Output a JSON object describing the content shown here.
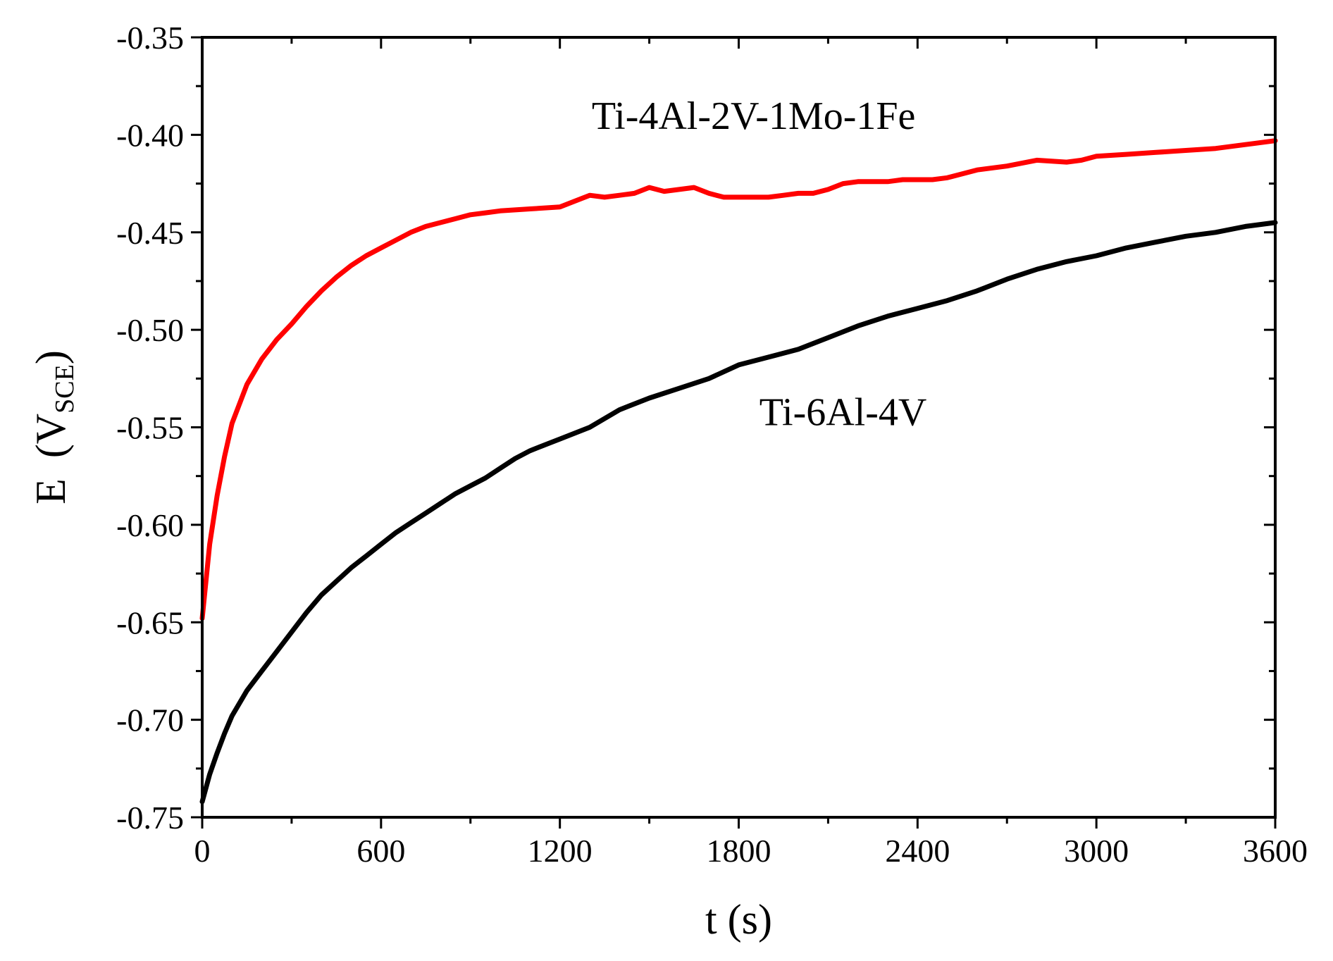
{
  "chart_data": {
    "type": "line",
    "title": "",
    "xlabel": "t (s)",
    "ylabel": {
      "main": "E",
      "unit_base": "V",
      "unit_subscript": "SCE"
    },
    "xlim": [
      0,
      3600
    ],
    "ylim": [
      -0.75,
      -0.35
    ],
    "x_ticks": [
      0,
      600,
      1200,
      1800,
      2400,
      3000,
      3600
    ],
    "x_tick_labels": [
      "0",
      "600",
      "1200",
      "1800",
      "2400",
      "3000",
      "3600"
    ],
    "y_ticks": [
      -0.75,
      -0.7,
      -0.65,
      -0.6,
      -0.55,
      -0.5,
      -0.45,
      -0.4,
      -0.35
    ],
    "y_tick_labels": [
      "-0.75",
      "-0.70",
      "-0.65",
      "-0.60",
      "-0.55",
      "-0.50",
      "-0.45",
      "-0.40",
      "-0.35"
    ],
    "grid": false,
    "series": [
      {
        "name": "Ti-4Al-2V-1Mo-1Fe",
        "color": "#ff0000",
        "x": [
          0,
          25,
          50,
          75,
          100,
          150,
          200,
          250,
          300,
          350,
          400,
          450,
          500,
          550,
          600,
          650,
          700,
          750,
          800,
          850,
          900,
          950,
          1000,
          1100,
          1200,
          1250,
          1300,
          1350,
          1400,
          1450,
          1500,
          1550,
          1600,
          1650,
          1700,
          1750,
          1800,
          1850,
          1900,
          1950,
          2000,
          2050,
          2100,
          2150,
          2200,
          2250,
          2300,
          2350,
          2400,
          2450,
          2500,
          2550,
          2600,
          2700,
          2800,
          2900,
          2950,
          3000,
          3100,
          3200,
          3300,
          3400,
          3500,
          3600
        ],
        "y": [
          -0.648,
          -0.61,
          -0.585,
          -0.565,
          -0.548,
          -0.528,
          -0.515,
          -0.505,
          -0.497,
          -0.488,
          -0.48,
          -0.473,
          -0.467,
          -0.462,
          -0.458,
          -0.454,
          -0.45,
          -0.447,
          -0.445,
          -0.443,
          -0.441,
          -0.44,
          -0.439,
          -0.438,
          -0.437,
          -0.434,
          -0.431,
          -0.432,
          -0.431,
          -0.43,
          -0.427,
          -0.429,
          -0.428,
          -0.427,
          -0.43,
          -0.432,
          -0.432,
          -0.432,
          -0.432,
          -0.431,
          -0.43,
          -0.43,
          -0.428,
          -0.425,
          -0.424,
          -0.424,
          -0.424,
          -0.423,
          -0.423,
          -0.423,
          -0.422,
          -0.42,
          -0.418,
          -0.416,
          -0.413,
          -0.414,
          -0.413,
          -0.411,
          -0.41,
          -0.409,
          -0.408,
          -0.407,
          -0.405,
          -0.403
        ]
      },
      {
        "name": "Ti-6Al-4V",
        "color": "#000000",
        "x": [
          0,
          25,
          50,
          75,
          100,
          150,
          200,
          250,
          300,
          350,
          400,
          450,
          500,
          550,
          600,
          650,
          700,
          750,
          800,
          850,
          900,
          950,
          1000,
          1050,
          1100,
          1150,
          1200,
          1300,
          1400,
          1500,
          1600,
          1700,
          1800,
          1900,
          2000,
          2100,
          2200,
          2300,
          2400,
          2500,
          2600,
          2700,
          2800,
          2900,
          3000,
          3100,
          3200,
          3300,
          3400,
          3500,
          3600
        ],
        "y": [
          -0.742,
          -0.728,
          -0.717,
          -0.707,
          -0.698,
          -0.685,
          -0.675,
          -0.665,
          -0.655,
          -0.645,
          -0.636,
          -0.629,
          -0.622,
          -0.616,
          -0.61,
          -0.604,
          -0.599,
          -0.594,
          -0.589,
          -0.584,
          -0.58,
          -0.576,
          -0.571,
          -0.566,
          -0.562,
          -0.559,
          -0.556,
          -0.55,
          -0.541,
          -0.535,
          -0.53,
          -0.525,
          -0.518,
          -0.514,
          -0.51,
          -0.504,
          -0.498,
          -0.493,
          -0.489,
          -0.485,
          -0.48,
          -0.474,
          -0.469,
          -0.465,
          -0.462,
          -0.458,
          -0.455,
          -0.452,
          -0.45,
          -0.447,
          -0.445
        ]
      }
    ],
    "annotations": [
      "Ti-4Al-2V-1Mo-1Fe",
      "Ti-6Al-4V"
    ],
    "legend": "none (series labelled by in-plot text annotations)"
  }
}
